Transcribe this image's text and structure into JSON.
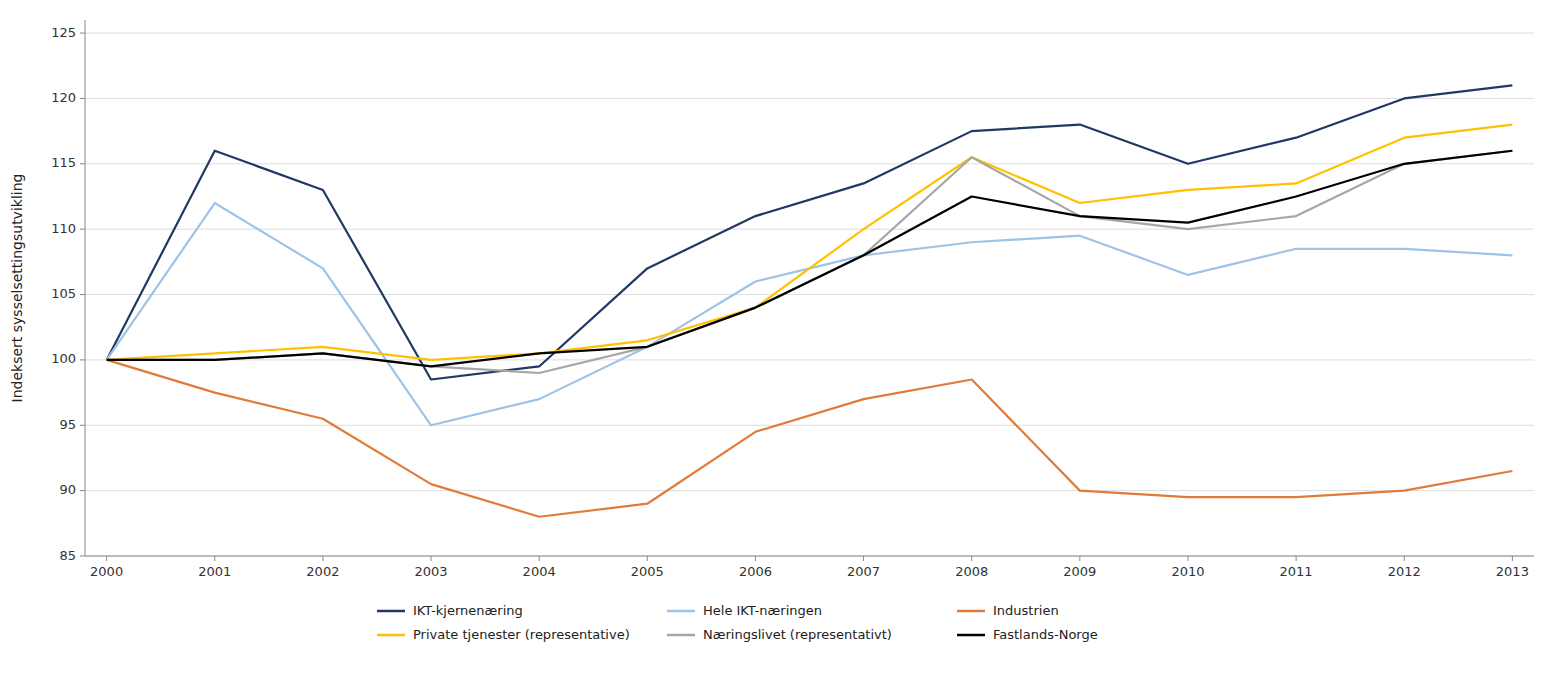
{
  "chart_data": {
    "type": "line",
    "x": [
      2000,
      2001,
      2002,
      2003,
      2004,
      2005,
      2006,
      2007,
      2008,
      2009,
      2010,
      2011,
      2012,
      2013
    ],
    "series": [
      {
        "name": "IKT-kjernenæring",
        "color": "#1F3864",
        "values": [
          100,
          116,
          113,
          98.5,
          99.5,
          107,
          111,
          113.5,
          117.5,
          118,
          115,
          117,
          120,
          121
        ]
      },
      {
        "name": "Hele IKT-næringen",
        "color": "#9DC3E6",
        "values": [
          100,
          112,
          107,
          95,
          97,
          101,
          106,
          108,
          109,
          109.5,
          106.5,
          108.5,
          108.5,
          108
        ]
      },
      {
        "name": "Industrien",
        "color": "#E07B39",
        "values": [
          100,
          97.5,
          95.5,
          90.5,
          88,
          89,
          94.5,
          97,
          98.5,
          90,
          89.5,
          89.5,
          90,
          91.5
        ]
      },
      {
        "name": "Private tjenester (representative)",
        "color": "#FFC000",
        "values": [
          100,
          100.5,
          101,
          100,
          100.5,
          101.5,
          104,
          110,
          115.5,
          112,
          113,
          113.5,
          117,
          118
        ]
      },
      {
        "name": "Næringslivet (representativt)",
        "color": "#A6A6A6",
        "values": [
          100,
          100,
          100.5,
          99.5,
          99,
          101,
          104,
          108,
          115.5,
          111,
          110,
          111,
          115,
          116
        ]
      },
      {
        "name": "Fastlands-Norge",
        "color": "#000000",
        "values": [
          100,
          100,
          100.5,
          99.5,
          100.5,
          101,
          104,
          108,
          112.5,
          111,
          110.5,
          112.5,
          115,
          116
        ]
      }
    ],
    "ylabel": "Indeksert sysselsettingsutvikling",
    "xlim": [
      1999.8,
      2013.2
    ],
    "xticks": [
      2000,
      2001,
      2002,
      2003,
      2004,
      2005,
      2006,
      2007,
      2008,
      2009,
      2010,
      2011,
      2012,
      2013
    ],
    "ylim": [
      85,
      126
    ],
    "yticks": [
      85,
      90,
      95,
      100,
      105,
      110,
      115,
      120,
      125
    ],
    "grid": true,
    "legend": "bottom"
  }
}
